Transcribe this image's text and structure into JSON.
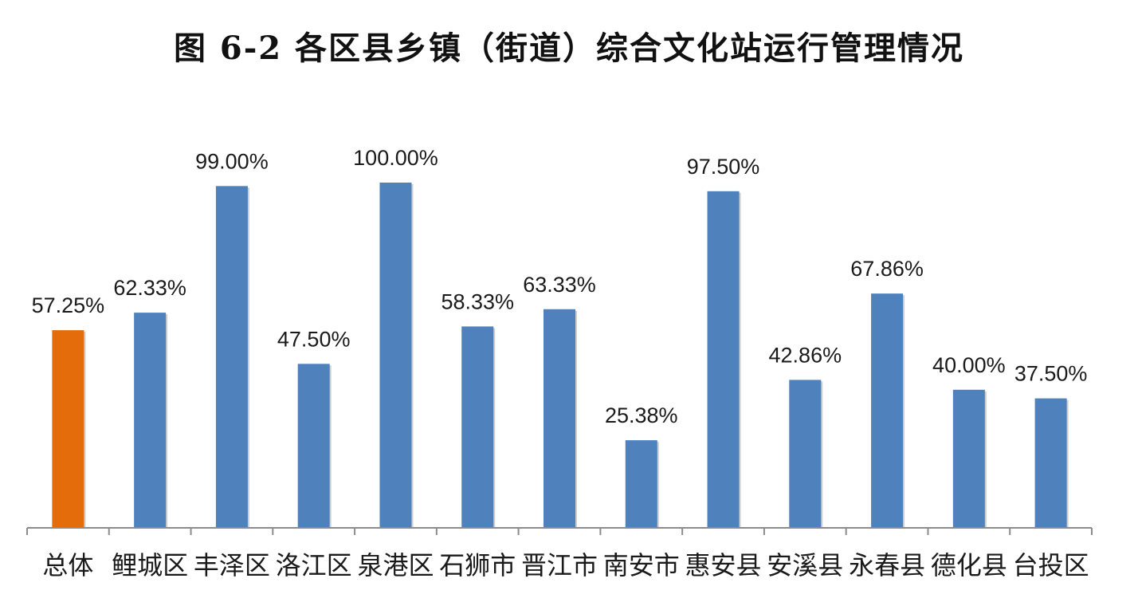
{
  "chart_data": {
    "type": "bar",
    "title": "图 6-2 各区县乡镇（街道）综合文化站运行管理情况",
    "categories": [
      "总体",
      "鲤城区",
      "丰泽区",
      "洛江区",
      "泉港区",
      "石狮市",
      "晋江市",
      "南安市",
      "惠安县",
      "安溪县",
      "永春县",
      "德化县",
      "台投区"
    ],
    "values": [
      57.25,
      62.33,
      99.0,
      47.5,
      100.0,
      58.33,
      63.33,
      25.38,
      97.5,
      42.86,
      67.86,
      40.0,
      37.5
    ],
    "labels": [
      "57.25%",
      "62.33%",
      "99.00%",
      "47.50%",
      "100.00%",
      "58.33%",
      "63.33%",
      "25.38%",
      "97.50%",
      "42.86%",
      "67.86%",
      "40.00%",
      "37.50%"
    ],
    "unit": "%",
    "ylim": [
      0,
      100
    ],
    "grid": false,
    "legend": "none",
    "colors": {
      "highlight": "#E46C0A",
      "default": "#4F81BD",
      "axis": "#8C8C8C"
    },
    "highlight_index": 0
  }
}
